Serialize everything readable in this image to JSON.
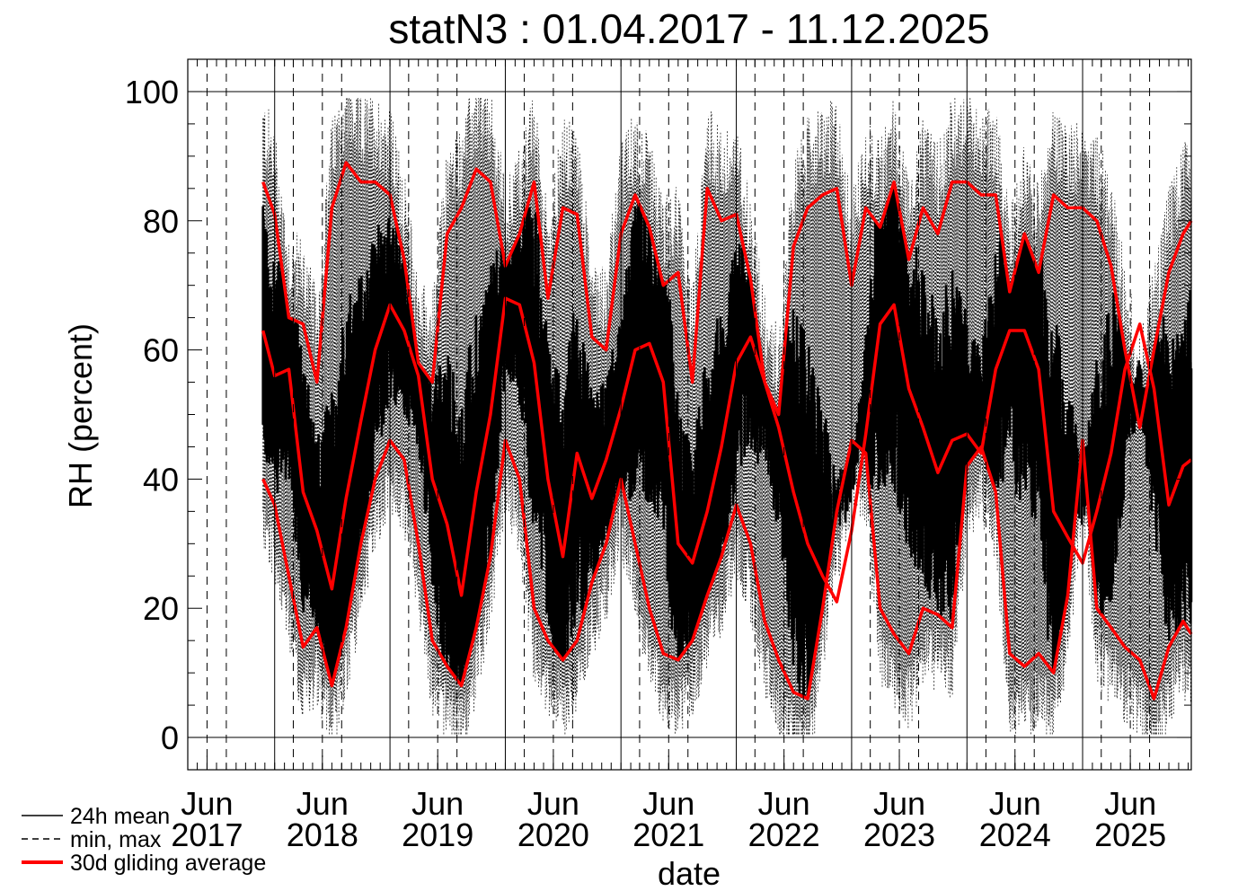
{
  "chart_data": {
    "type": "line",
    "title": "statN3 : 01.04.2017 - 11.12.2025",
    "xlabel": "date",
    "ylabel": "RH (percent)",
    "ylim": [
      -5,
      105
    ],
    "xlim": [
      "2017-04-01",
      "2025-12-11"
    ],
    "y_ticks": [
      "0",
      "20",
      "40",
      "60",
      "80",
      "100"
    ],
    "x_ticks": [
      {
        "top": "Jun",
        "bottom": "2017",
        "date": "2017-06-01"
      },
      {
        "top": "Jun",
        "bottom": "2018",
        "date": "2018-06-01"
      },
      {
        "top": "Jun",
        "bottom": "2019",
        "date": "2019-06-01"
      },
      {
        "top": "Jun",
        "bottom": "2020",
        "date": "2020-06-01"
      },
      {
        "top": "Jun",
        "bottom": "2021",
        "date": "2021-06-01"
      },
      {
        "top": "Jun",
        "bottom": "2022",
        "date": "2022-06-01"
      },
      {
        "top": "Jun",
        "bottom": "2023",
        "date": "2023-06-01"
      },
      {
        "top": "Jun",
        "bottom": "2024",
        "date": "2024-06-01"
      },
      {
        "top": "Jun",
        "bottom": "2025",
        "date": "2025-06-01"
      }
    ],
    "legend_position": "bottom-left",
    "legend": [
      {
        "label": "24h mean",
        "style": "solid",
        "color": "#000000"
      },
      {
        "label": "min, max",
        "style": "dashed",
        "color": "#000000"
      },
      {
        "label": "30d gliding average",
        "style": "solid-thick",
        "color": "#ff0000"
      }
    ],
    "data_start": "2017-11-25",
    "series": [
      {
        "name": "30d gliding average",
        "color": "#ff0000",
        "x": [
          "2017-11-25",
          "2018-01-01",
          "2018-02-15",
          "2018-04-01",
          "2018-05-15",
          "2018-07-01",
          "2018-08-15",
          "2018-10-01",
          "2018-11-15",
          "2019-01-01",
          "2019-02-15",
          "2019-04-01",
          "2019-05-15",
          "2019-07-01",
          "2019-08-15",
          "2019-10-01",
          "2019-11-15",
          "2020-01-01",
          "2020-02-15",
          "2020-04-01",
          "2020-05-15",
          "2020-07-01",
          "2020-08-15",
          "2020-10-01",
          "2020-11-15",
          "2021-01-01",
          "2021-02-15",
          "2021-04-01",
          "2021-05-15",
          "2021-07-01",
          "2021-08-15",
          "2021-10-01",
          "2021-11-15",
          "2022-01-01",
          "2022-02-15",
          "2022-04-01",
          "2022-05-15",
          "2022-07-01",
          "2022-08-15",
          "2022-10-01",
          "2022-11-15",
          "2023-01-01",
          "2023-02-15",
          "2023-04-01",
          "2023-05-15",
          "2023-07-01",
          "2023-08-15",
          "2023-10-01",
          "2023-11-15",
          "2024-01-01",
          "2024-02-15",
          "2024-04-01",
          "2024-05-15",
          "2024-07-01",
          "2024-08-15",
          "2024-10-01",
          "2024-11-15",
          "2025-01-01",
          "2025-02-15",
          "2025-04-01",
          "2025-05-15",
          "2025-07-01",
          "2025-08-15",
          "2025-10-01",
          "2025-11-15",
          "2025-12-11"
        ],
        "values": [
          63,
          56,
          57,
          38,
          32,
          23,
          37,
          49,
          60,
          67,
          63,
          56,
          40,
          33,
          22,
          38,
          50,
          68,
          67,
          58,
          40,
          28,
          44,
          37,
          43,
          51,
          60,
          61,
          55,
          30,
          27,
          35,
          45,
          58,
          62,
          55,
          48,
          38,
          30,
          25,
          21,
          32,
          47,
          64,
          67,
          54,
          48,
          41,
          46,
          47,
          44,
          57,
          63,
          63,
          57,
          35,
          31,
          27,
          35,
          44,
          57,
          64,
          54,
          36,
          42,
          43
        ]
      },
      {
        "name": "",
        "color": "#ff0000",
        "x": [
          "2017-11-25",
          "2018-01-01",
          "2018-02-15",
          "2018-04-01",
          "2018-05-15",
          "2018-07-01",
          "2018-08-15",
          "2018-10-01",
          "2018-11-15",
          "2019-01-01",
          "2019-02-15",
          "2019-04-01",
          "2019-05-15",
          "2019-07-01",
          "2019-08-15",
          "2019-10-01",
          "2019-11-15",
          "2020-01-01",
          "2020-02-15",
          "2020-04-01",
          "2020-05-15",
          "2020-07-01",
          "2020-08-15",
          "2020-10-01",
          "2020-11-15",
          "2021-01-01",
          "2021-02-15",
          "2021-04-01",
          "2021-05-15",
          "2021-07-01",
          "2021-08-15",
          "2021-10-01",
          "2021-11-15",
          "2022-01-01",
          "2022-02-15",
          "2022-04-01",
          "2022-05-15",
          "2022-07-01",
          "2022-08-15",
          "2022-10-01",
          "2022-11-15",
          "2023-01-01",
          "2023-02-15",
          "2023-04-01",
          "2023-05-15",
          "2023-07-01",
          "2023-08-15",
          "2023-10-01",
          "2023-11-15",
          "2024-01-01",
          "2024-02-15",
          "2024-04-01",
          "2024-05-15",
          "2024-07-01",
          "2024-08-15",
          "2024-10-01",
          "2024-11-15",
          "2025-01-01",
          "2025-02-15",
          "2025-04-01",
          "2025-05-15",
          "2025-07-01",
          "2025-08-15",
          "2025-10-01",
          "2025-11-15",
          "2025-12-11"
        ],
        "values": [
          86,
          81,
          65,
          64,
          55,
          82,
          89,
          86,
          86,
          84,
          74,
          58,
          55,
          78,
          82,
          88,
          86,
          73,
          78,
          86,
          68,
          82,
          81,
          62,
          60,
          78,
          84,
          79,
          70,
          72,
          55,
          85,
          80,
          81,
          71,
          55,
          50,
          76,
          82,
          84,
          85,
          70,
          82,
          79,
          86,
          74,
          82,
          78,
          86,
          86,
          84,
          84,
          69,
          78,
          72,
          84,
          82,
          82,
          80,
          73,
          60,
          48,
          60,
          72,
          78,
          80
        ]
      },
      {
        "name": "",
        "color": "#ff0000",
        "x": [
          "2017-11-25",
          "2018-01-01",
          "2018-02-15",
          "2018-04-01",
          "2018-05-15",
          "2018-07-01",
          "2018-08-15",
          "2018-10-01",
          "2018-11-15",
          "2019-01-01",
          "2019-02-15",
          "2019-04-01",
          "2019-05-15",
          "2019-07-01",
          "2019-08-15",
          "2019-10-01",
          "2019-11-15",
          "2020-01-01",
          "2020-02-15",
          "2020-04-01",
          "2020-05-15",
          "2020-07-01",
          "2020-08-15",
          "2020-10-01",
          "2020-11-15",
          "2021-01-01",
          "2021-02-15",
          "2021-04-01",
          "2021-05-15",
          "2021-07-01",
          "2021-08-15",
          "2021-10-01",
          "2021-11-15",
          "2022-01-01",
          "2022-02-15",
          "2022-04-01",
          "2022-05-15",
          "2022-07-01",
          "2022-08-15",
          "2022-10-01",
          "2022-11-15",
          "2023-01-01",
          "2023-02-15",
          "2023-04-01",
          "2023-05-15",
          "2023-07-01",
          "2023-08-15",
          "2023-10-01",
          "2023-11-15",
          "2024-01-01",
          "2024-02-15",
          "2024-04-01",
          "2024-05-15",
          "2024-07-01",
          "2024-08-15",
          "2024-10-01",
          "2024-11-15",
          "2025-01-01",
          "2025-02-15",
          "2025-04-01",
          "2025-05-15",
          "2025-07-01",
          "2025-08-15",
          "2025-10-01",
          "2025-11-15",
          "2025-12-11"
        ],
        "values": [
          40,
          36,
          25,
          14,
          17,
          8,
          17,
          30,
          40,
          46,
          43,
          30,
          15,
          11,
          8,
          17,
          28,
          46,
          40,
          20,
          15,
          12,
          15,
          24,
          30,
          40,
          30,
          20,
          13,
          12,
          15,
          22,
          28,
          36,
          30,
          18,
          12,
          7,
          6,
          20,
          35,
          46,
          44,
          20,
          16,
          13,
          20,
          19,
          17,
          42,
          45,
          38,
          13,
          11,
          13,
          10,
          22,
          46,
          20,
          17,
          14,
          12,
          6,
          14,
          18,
          16
        ]
      }
    ]
  }
}
